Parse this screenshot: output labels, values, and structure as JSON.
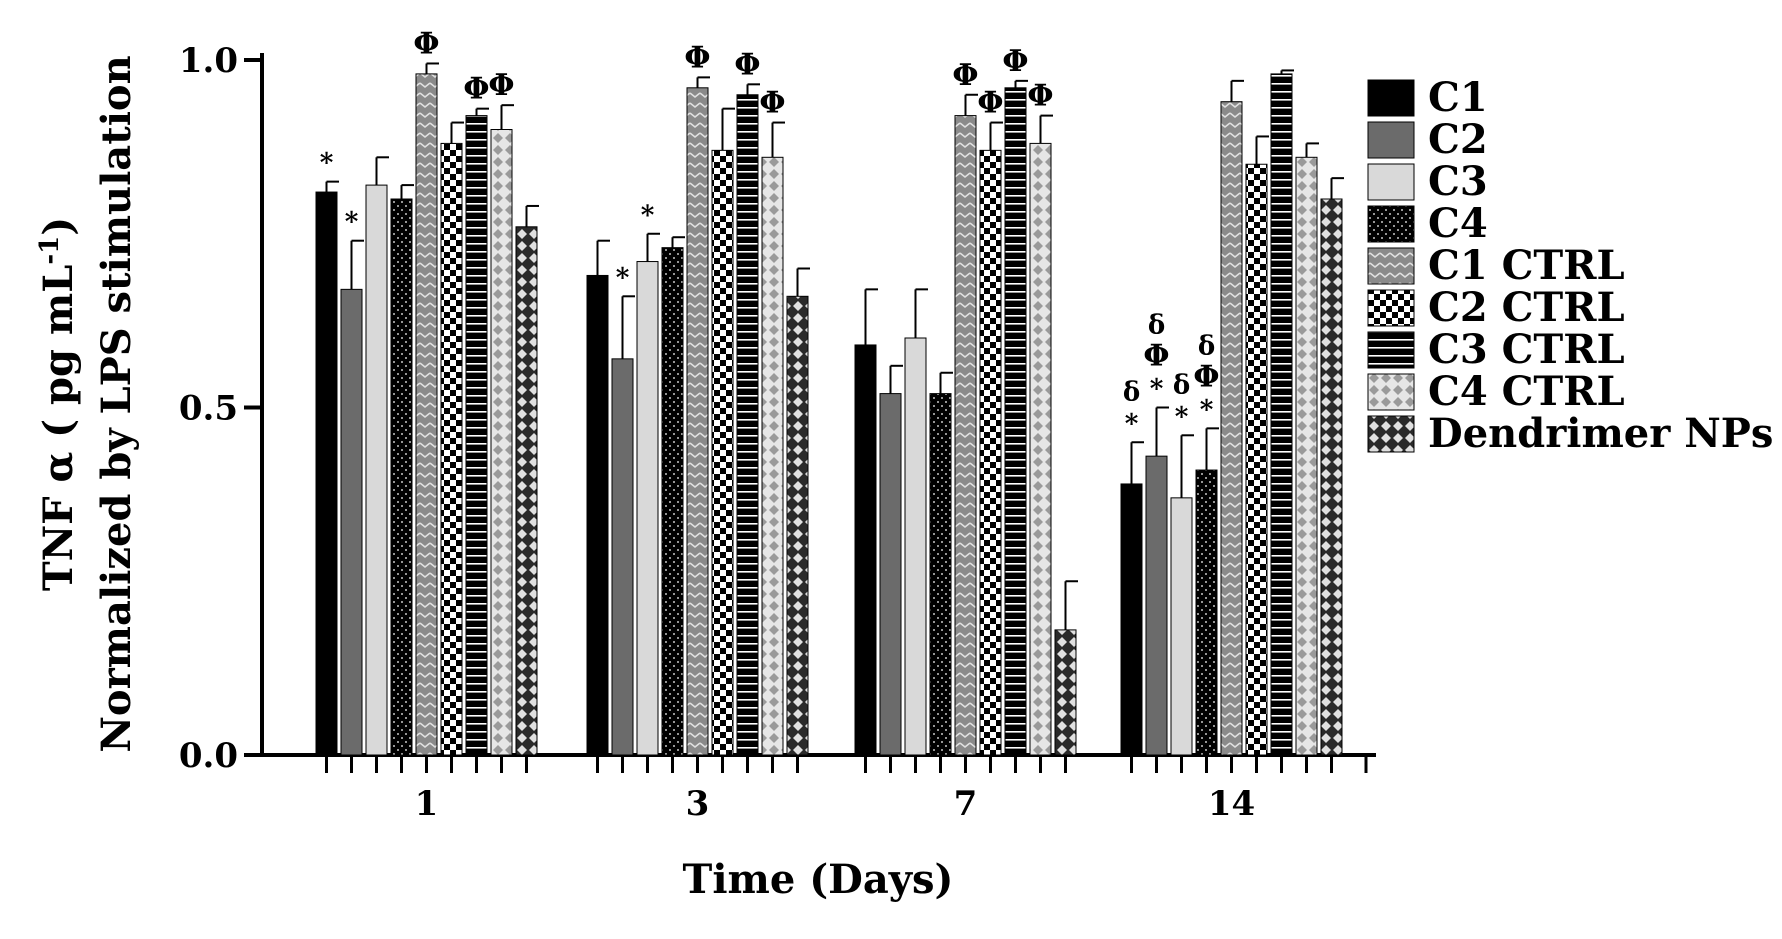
{
  "chart_data": {
    "type": "bar",
    "title": "",
    "xlabel": "Time (Days)",
    "ylabel_line1": "TNF α ( pg mL",
    "ylabel_sup": "-1",
    "ylabel_line1_end": ")",
    "ylabel_line2": "Normalized by LPS stimulation",
    "ylim": [
      0,
      1
    ],
    "yticks": [
      "0.0",
      "0.5",
      "1.0"
    ],
    "categories": [
      "1",
      "3",
      "7",
      "14"
    ],
    "series": [
      {
        "name": "C1",
        "values": [
          0.81,
          0.69,
          0.59,
          0.39
        ],
        "errors": [
          0.015,
          0.05,
          0.08,
          0.06
        ],
        "annotations": [
          [
            "*"
          ],
          [],
          [],
          [
            "δ",
            "*"
          ]
        ]
      },
      {
        "name": "C2",
        "values": [
          0.67,
          0.57,
          0.52,
          0.43
        ],
        "errors": [
          0.07,
          0.09,
          0.04,
          0.07
        ],
        "annotations": [
          [
            "*"
          ],
          [
            "*"
          ],
          [],
          [
            "δ",
            "Φ",
            "*"
          ]
        ]
      },
      {
        "name": "C3",
        "values": [
          0.82,
          0.71,
          0.6,
          0.37
        ],
        "errors": [
          0.04,
          0.04,
          0.07,
          0.09
        ],
        "annotations": [
          [],
          [
            "*"
          ],
          [],
          [
            "δ",
            "*"
          ]
        ]
      },
      {
        "name": "C4",
        "values": [
          0.8,
          0.73,
          0.52,
          0.41
        ],
        "errors": [
          0.02,
          0.015,
          0.03,
          0.06
        ],
        "annotations": [
          [],
          [],
          [],
          [
            "δ",
            "Φ",
            "*"
          ]
        ]
      },
      {
        "name": "C1 CTRL",
        "values": [
          0.98,
          0.96,
          0.92,
          0.94
        ],
        "errors": [
          0.015,
          0.015,
          0.03,
          0.03
        ],
        "annotations": [
          [
            "Φ"
          ],
          [
            "Φ"
          ],
          [
            "Φ"
          ],
          []
        ]
      },
      {
        "name": "C2 CTRL",
        "values": [
          0.88,
          0.87,
          0.87,
          0.85
        ],
        "errors": [
          0.03,
          0.06,
          0.04,
          0.04
        ],
        "annotations": [
          [],
          [],
          [
            "Φ"
          ],
          []
        ]
      },
      {
        "name": "C3 CTRL",
        "values": [
          0.92,
          0.95,
          0.96,
          0.98
        ],
        "errors": [
          0.01,
          0.015,
          0.01,
          0.005
        ],
        "annotations": [
          [
            "Φ"
          ],
          [
            "Φ"
          ],
          [
            "Φ"
          ],
          []
        ]
      },
      {
        "name": "C4 CTRL",
        "values": [
          0.9,
          0.86,
          0.88,
          0.86
        ],
        "errors": [
          0.035,
          0.05,
          0.04,
          0.02
        ],
        "annotations": [
          [
            "Φ"
          ],
          [
            "Φ"
          ],
          [
            "Φ"
          ],
          []
        ]
      },
      {
        "name": "Dendrimer NPs",
        "values": [
          0.76,
          0.66,
          0.18,
          0.8
        ],
        "errors": [
          0.03,
          0.04,
          0.07,
          0.03
        ],
        "annotations": [
          [],
          [],
          [],
          []
        ]
      }
    ],
    "legend_position": "right"
  }
}
